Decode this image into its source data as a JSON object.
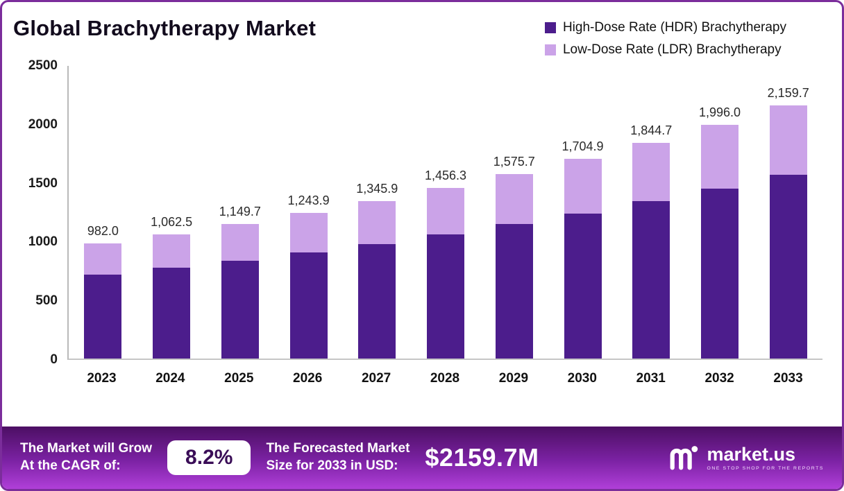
{
  "chart": {
    "title": "Global Brachytherapy Market",
    "legend": [
      {
        "label": "High-Dose Rate (HDR) Brachytherapy",
        "color": "#4c1d8c"
      },
      {
        "label": "Low-Dose Rate (LDR) Brachytherapy",
        "color": "#cba3e8"
      }
    ]
  },
  "chart_data": {
    "type": "bar",
    "stacked": true,
    "title": "Global Brachytherapy Market",
    "categories": [
      "2023",
      "2024",
      "2025",
      "2026",
      "2027",
      "2028",
      "2029",
      "2030",
      "2031",
      "2032",
      "2033"
    ],
    "series": [
      {
        "name": "High-Dose Rate (HDR) Brachytherapy",
        "color": "#4c1d8c",
        "values": [
          714.9,
          773.5,
          837.0,
          905.6,
          979.8,
          1060.2,
          1147.1,
          1241.2,
          1343.0,
          1453.1,
          1572.3
        ]
      },
      {
        "name": "Low-Dose Rate (LDR) Brachytherapy",
        "color": "#cba3e8",
        "values": [
          267.1,
          289.0,
          312.7,
          338.3,
          366.1,
          396.1,
          428.6,
          463.7,
          501.7,
          542.9,
          587.4
        ]
      }
    ],
    "totals": [
      "982.0",
      "1,062.5",
      "1,149.7",
      "1,243.9",
      "1,345.9",
      "1,456.3",
      "1,575.7",
      "1,704.9",
      "1,844.7",
      "1,996.0",
      "2,159.7"
    ],
    "total_values": [
      982.0,
      1062.5,
      1149.7,
      1243.9,
      1345.9,
      1456.3,
      1575.7,
      1704.9,
      1844.7,
      1996.0,
      2159.7
    ],
    "ylim": [
      0,
      2500
    ],
    "y_ticks": [
      2500,
      2000,
      1500,
      1000,
      500,
      0
    ],
    "legend_position": "top-right",
    "grid": false
  },
  "banner": {
    "cagr_label_line1": "The Market will Grow",
    "cagr_label_line2": "At the CAGR of:",
    "cagr_value": "8.2%",
    "forecast_label_line1": "The Forecasted Market",
    "forecast_label_line2": "Size for 2033 in USD:",
    "forecast_value": "$2159.7M",
    "brand_name": "market.us",
    "brand_tagline": "ONE STOP SHOP FOR THE REPORTS"
  }
}
